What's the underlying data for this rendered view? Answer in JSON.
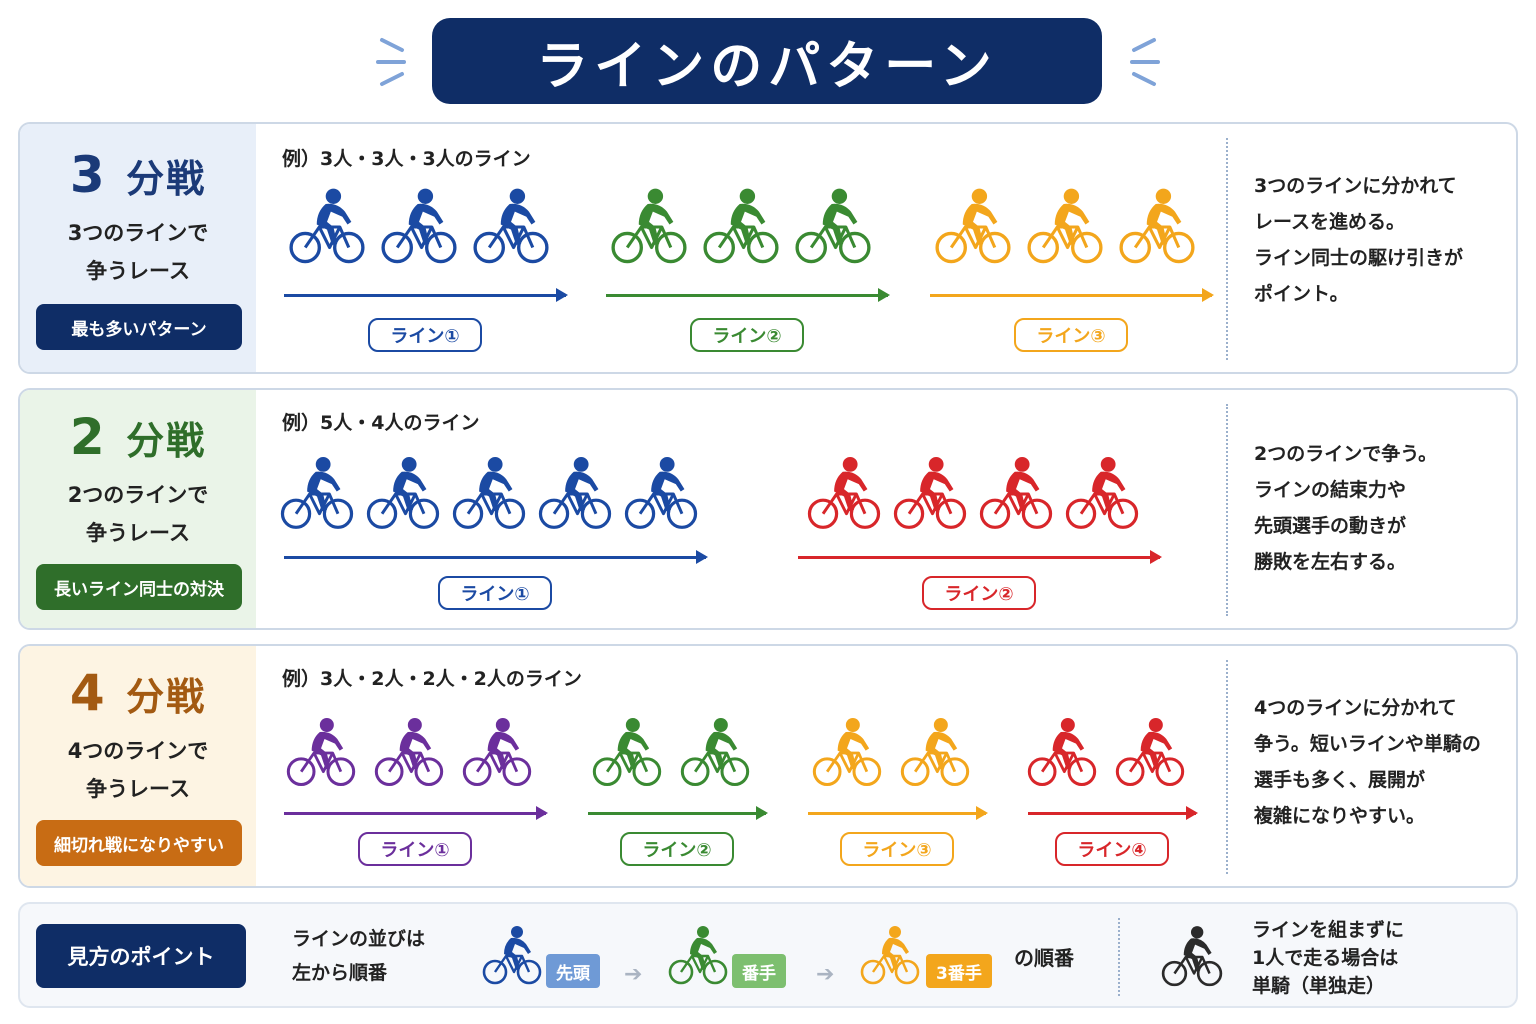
{
  "title": "ラインのパターン",
  "colors": {
    "navy": "#0f2d66",
    "blue": "#1b4aa3",
    "green": "#3a8a32",
    "orange": "#f3a61c",
    "red": "#d8262a",
    "purple": "#6b2f9c",
    "black": "#2b2b2b"
  },
  "panels": [
    {
      "title_num": "3",
      "title_rest": "分戦",
      "title_color": "#1b3a78",
      "bg": "#e8eff9",
      "sub_line1": "3つのラインで",
      "sub_line2": "争うレース",
      "tag": "最も多いパターン",
      "tag_color": "#0f2d66",
      "example": "例）3人・3人・3人のライン",
      "desc": [
        "3つのラインに分かれて",
        "レースを進める。",
        "ライン同士の駆け引きが",
        "ポイント。"
      ],
      "lines": [
        {
          "count": 3,
          "color": "#1b4aa3",
          "label": "ライン①"
        },
        {
          "count": 3,
          "color": "#3a8a32",
          "label": "ライン②"
        },
        {
          "count": 3,
          "color": "#f3a61c",
          "label": "ライン③"
        }
      ]
    },
    {
      "title_num": "2",
      "title_rest": "分戦",
      "title_color": "#2f6e2a",
      "bg": "#eaf4e8",
      "sub_line1": "2つのラインで",
      "sub_line2": "争うレース",
      "tag": "長いライン同士の対決",
      "tag_color": "#2f6e2a",
      "example": "例）5人・4人のライン",
      "desc": [
        "2つのラインで争う。",
        "ラインの結束力や",
        "先頭選手の動きが",
        "勝敗を左右する。"
      ],
      "lines": [
        {
          "count": 5,
          "color": "#1b4aa3",
          "label": "ライン①"
        },
        {
          "count": 4,
          "color": "#d8262a",
          "label": "ライン②"
        }
      ]
    },
    {
      "title_num": "4",
      "title_rest": "分戦",
      "title_color": "#a35a12",
      "bg": "#fdf4e3",
      "sub_line1": "4つのラインで",
      "sub_line2": "争うレース",
      "tag": "細切れ戦になりやすい",
      "tag_color": "#c86c14",
      "example": "例）3人・2人・2人・2人のライン",
      "desc": [
        "4つのラインに分かれて",
        "争う。短いラインや単騎の",
        "選手も多く、展開が",
        "複雑になりやすい。"
      ],
      "lines": [
        {
          "count": 3,
          "color": "#6b2f9c",
          "label": "ライン①"
        },
        {
          "count": 2,
          "color": "#3a8a32",
          "label": "ライン②"
        },
        {
          "count": 2,
          "color": "#f3a61c",
          "label": "ライン③"
        },
        {
          "count": 2,
          "color": "#d8262a",
          "label": "ライン④"
        }
      ]
    }
  ],
  "bottom": {
    "button": "見方のポイント",
    "text_line1": "ラインの並びは",
    "text_line2": "左から順番",
    "badges": [
      {
        "label": "先頭",
        "color": "#1b4aa3",
        "badge_color": "#6f9ad6"
      },
      {
        "label": "番手",
        "color": "#3a8a32",
        "badge_color": "#7dbf6f"
      },
      {
        "label": "3番手",
        "color": "#f3a61c",
        "badge_color": "#f3a61c"
      }
    ],
    "order_text": "の順番",
    "solo_line1": "ラインを組まずに",
    "solo_line2": "1人で走る場合は",
    "solo_line3": "単騎（単独走）"
  }
}
